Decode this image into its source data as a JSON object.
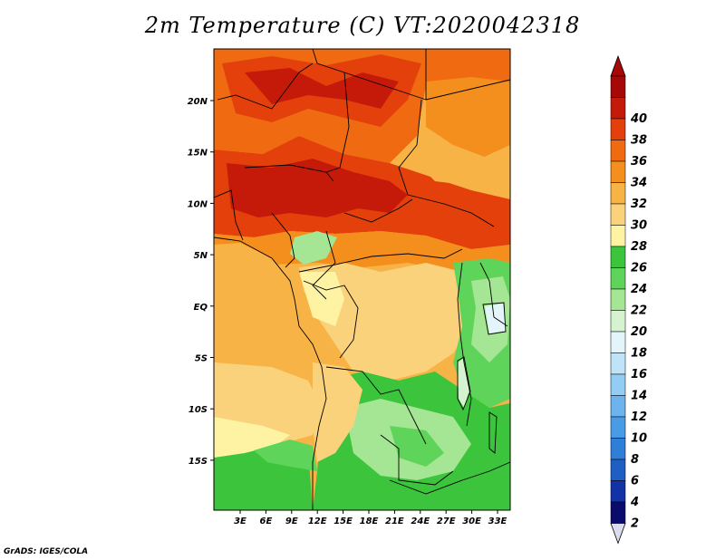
{
  "title": "2m Temperature (C) VT:2020042318",
  "credit": "GrADS: IGES/COLA",
  "map": {
    "lon_labels": [
      "3E",
      "6E",
      "9E",
      "12E",
      "15E",
      "18E",
      "21E",
      "24E",
      "27E",
      "30E",
      "33E"
    ],
    "lat_labels": [
      "20N",
      "15N",
      "10N",
      "5N",
      "EQ",
      "5S",
      "10S",
      "15S"
    ]
  },
  "colorbar": {
    "levels": [
      "2",
      "4",
      "6",
      "8",
      "10",
      "12",
      "14",
      "16",
      "18",
      "20",
      "22",
      "24",
      "26",
      "28",
      "30",
      "32",
      "34",
      "36",
      "38",
      "40"
    ],
    "colors": [
      "#0b0b6e",
      "#1233a8",
      "#1f5fc4",
      "#2f7fd9",
      "#4a9be6",
      "#6db4ee",
      "#94cdf4",
      "#bfe4f8",
      "#e3f5fb",
      "#d6f3cf",
      "#a4e693",
      "#5ed45a",
      "#3cc43c",
      "#fdf3a3",
      "#fbd27c",
      "#f7b346",
      "#f48e1d",
      "#f06a12",
      "#e3400c",
      "#c51a0a",
      "#a50806"
    ],
    "low_arrow_color": "#dcdcf0",
    "high_arrow_color": "#a50806"
  }
}
